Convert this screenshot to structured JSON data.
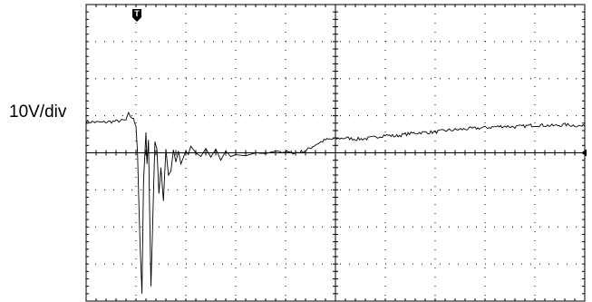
{
  "chart_data": {
    "type": "line",
    "vertical_scale_label": "10V/div",
    "trigger_marker": "T",
    "reference_marker": "arrow-left",
    "grid": true,
    "divisions": {
      "x": 10,
      "y": 8
    },
    "xlim": [
      0,
      10
    ],
    "ylim": [
      -4,
      4
    ],
    "series": [
      {
        "x": [
          0.0,
          0.3,
          0.6,
          0.8,
          0.85,
          0.95,
          1.0,
          1.03,
          1.08,
          1.12,
          1.15,
          1.2,
          1.22,
          1.25,
          1.3,
          1.38,
          1.42,
          1.46,
          1.5,
          1.55,
          1.6,
          1.65,
          1.7,
          1.75,
          1.8,
          1.85,
          1.9,
          2.0,
          2.05,
          2.1,
          2.2,
          2.3,
          2.4,
          2.5,
          2.6,
          2.7,
          2.8,
          2.9,
          3.0,
          3.2,
          3.4,
          3.6,
          3.8,
          4.0,
          4.2,
          4.4,
          4.6,
          4.8,
          5.0,
          5.2,
          5.4,
          5.6,
          5.8,
          6.0,
          6.2,
          6.4,
          6.6,
          6.8,
          7.0,
          7.2,
          7.4,
          7.6,
          7.8,
          8.0,
          8.2,
          8.4,
          8.6,
          8.8,
          9.0,
          9.2,
          9.4,
          9.6,
          9.8,
          10.0
        ],
        "y": [
          0.84,
          0.82,
          0.85,
          0.88,
          1.05,
          0.9,
          0.72,
          0.0,
          -2.4,
          -3.8,
          -0.8,
          0.55,
          -0.3,
          0.35,
          -3.6,
          0.3,
          0.1,
          -1.1,
          -0.4,
          -1.3,
          0.1,
          -0.6,
          -0.5,
          0.08,
          -0.25,
          0.05,
          -0.3,
          0.05,
          -0.05,
          0.18,
          0.0,
          -0.1,
          0.12,
          -0.12,
          0.1,
          -0.2,
          0.05,
          -0.1,
          -0.05,
          -0.08,
          0.0,
          -0.02,
          0.05,
          0.02,
          0.0,
          0.05,
          0.22,
          0.35,
          0.38,
          0.4,
          0.37,
          0.38,
          0.42,
          0.48,
          0.45,
          0.5,
          0.54,
          0.55,
          0.56,
          0.6,
          0.62,
          0.64,
          0.66,
          0.68,
          0.7,
          0.72,
          0.7,
          0.72,
          0.75,
          0.74,
          0.73,
          0.76,
          0.74,
          0.71
        ]
      }
    ]
  }
}
